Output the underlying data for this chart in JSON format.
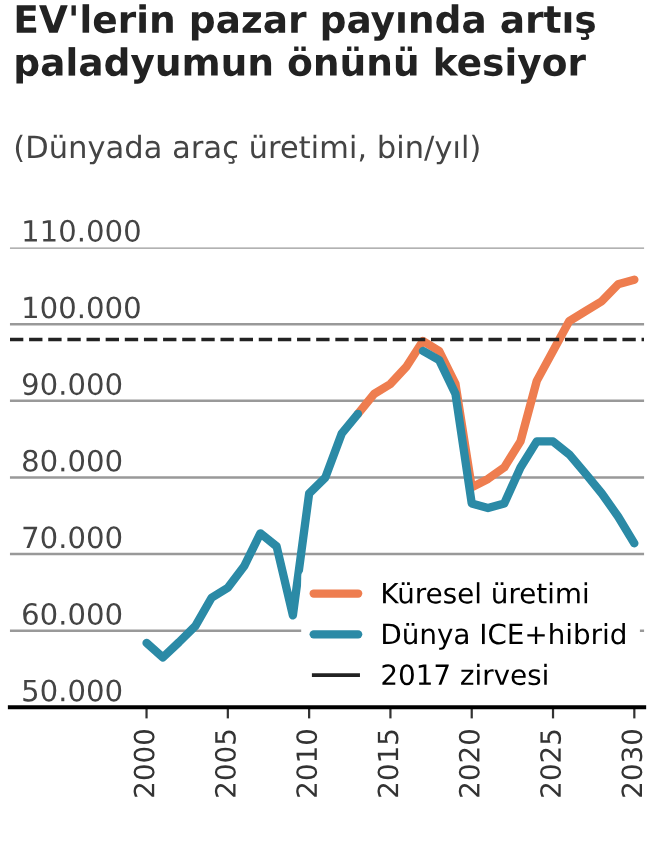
{
  "chart_data": {
    "type": "line",
    "title": "EV'lerin pazar payında artış paladyumun önünü kesiyor",
    "subtitle": "(Dünyada araç üretimi, bin/yıl)",
    "x": [
      2000,
      2001,
      2002,
      2003,
      2004,
      2005,
      2006,
      2007,
      2008,
      2009,
      2010,
      2011,
      2012,
      2013,
      2014,
      2015,
      2016,
      2017,
      2018,
      2019,
      2020,
      2021,
      2022,
      2023,
      2024,
      2025,
      2026,
      2027,
      2028,
      2029,
      2030
    ],
    "series": [
      {
        "name": "Küresel üretimi",
        "color": "#ee7d4f",
        "values": [
          null,
          null,
          null,
          null,
          null,
          null,
          null,
          null,
          null,
          null,
          null,
          null,
          null,
          88300,
          90900,
          92200,
          94500,
          97800,
          96500,
          92200,
          78700,
          79800,
          81300,
          84700,
          92600,
          96500,
          100400,
          101700,
          103000,
          105200,
          105800
        ]
      },
      {
        "name": "Dünya ICE+hibrid",
        "color": "#2b8aa6",
        "values": [
          58400,
          56500,
          58500,
          60600,
          64300,
          65600,
          68400,
          72700,
          71000,
          62000,
          77900,
          80000,
          85700,
          88300,
          null,
          null,
          null,
          96500,
          95300,
          90900,
          76600,
          76000,
          76600,
          81300,
          84700,
          84700,
          83000,
          80500,
          77900,
          74900,
          71400
        ]
      }
    ],
    "ref_lines": [
      {
        "axis": "y",
        "value": 98000,
        "label": "2017 zirvesi",
        "color": "#222222",
        "line_style": "dashed"
      }
    ],
    "xlim": [
      1991.6,
      2030.6
    ],
    "xticks": [
      2000,
      2005,
      2010,
      2015,
      2020,
      2025,
      2030
    ],
    "ylim": [
      50000,
      110000
    ],
    "yticks": [
      {
        "value": 50000,
        "label": "50.000"
      },
      {
        "value": 60000,
        "label": "60.000"
      },
      {
        "value": 70000,
        "label": "70.000"
      },
      {
        "value": 80000,
        "label": "80.000"
      },
      {
        "value": 90000,
        "label": "90.000"
      },
      {
        "value": 100000,
        "label": "100.000"
      },
      {
        "value": 110000,
        "label": "110.000"
      }
    ],
    "grid": "y",
    "legend": "bottom right",
    "line_style": "solid",
    "marker": "none"
  }
}
